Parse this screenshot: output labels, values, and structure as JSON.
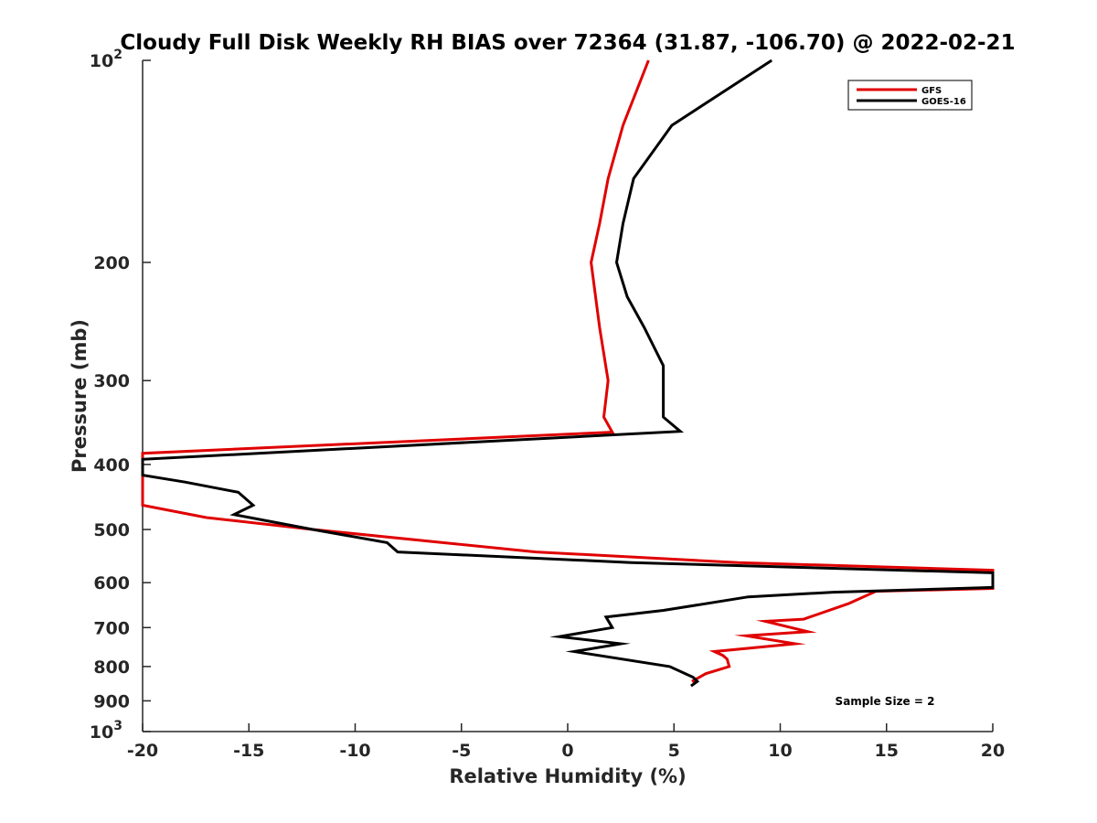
{
  "chart_data": {
    "type": "line",
    "title": "Cloudy Full Disk Weekly RH BIAS over 72364 (31.87, -106.70) @ 2022-02-21",
    "xlabel": "Relative Humidity (%)",
    "ylabel": "Pressure (mb)",
    "xlim": [
      -20,
      20
    ],
    "ylim": [
      100,
      1000
    ],
    "yscale": "log",
    "y_reversed": true,
    "xticks": [
      "-20",
      "-15",
      "-10",
      "-5",
      "0",
      "5",
      "10",
      "15",
      "20"
    ],
    "xtick_values": [
      -20,
      -15,
      -10,
      -5,
      0,
      5,
      10,
      15,
      20
    ],
    "yticks": [
      {
        "value": 100,
        "base": "10",
        "exp": "2"
      },
      {
        "value": 200,
        "label": "200"
      },
      {
        "value": 300,
        "label": "300"
      },
      {
        "value": 400,
        "label": "400"
      },
      {
        "value": 500,
        "label": "500"
      },
      {
        "value": 600,
        "label": "600"
      },
      {
        "value": 700,
        "label": "700"
      },
      {
        "value": 800,
        "label": "800"
      },
      {
        "value": 900,
        "label": "900"
      },
      {
        "value": 1000,
        "base": "10",
        "exp": "3"
      }
    ],
    "grid": false,
    "legend_position": "top-right",
    "annotation": "Sample Size = 2",
    "series": [
      {
        "name": "GFS",
        "color": "#e00000",
        "points": [
          [
            3.8,
            100
          ],
          [
            2.6,
            125
          ],
          [
            1.9,
            150
          ],
          [
            1.5,
            175
          ],
          [
            1.1,
            200
          ],
          [
            1.5,
            250
          ],
          [
            1.9,
            300
          ],
          [
            1.7,
            340
          ],
          [
            2.1,
            358
          ],
          [
            -20.0,
            385
          ],
          [
            -20.0,
            460
          ],
          [
            -17.0,
            480
          ],
          [
            -12.0,
            500
          ],
          [
            -1.5,
            540
          ],
          [
            8.0,
            560
          ],
          [
            20.0,
            575
          ],
          [
            20.0,
            612
          ],
          [
            14.5,
            618
          ],
          [
            13.2,
            645
          ],
          [
            11.1,
            680
          ],
          [
            9.3,
            685
          ],
          [
            11.3,
            710
          ],
          [
            8.4,
            720
          ],
          [
            10.7,
            740
          ],
          [
            6.9,
            760
          ],
          [
            7.3,
            770
          ],
          [
            7.5,
            780
          ],
          [
            7.6,
            800
          ],
          [
            6.5,
            820
          ],
          [
            5.9,
            840
          ],
          [
            6.0,
            850
          ]
        ]
      },
      {
        "name": "GOES-16",
        "color": "#000000",
        "points": [
          [
            9.6,
            100
          ],
          [
            4.9,
            125
          ],
          [
            3.1,
            150
          ],
          [
            2.6,
            175
          ],
          [
            2.3,
            200
          ],
          [
            2.8,
            225
          ],
          [
            3.6,
            250
          ],
          [
            4.5,
            285
          ],
          [
            4.5,
            310
          ],
          [
            4.5,
            340
          ],
          [
            5.3,
            357
          ],
          [
            -20.0,
            393
          ],
          [
            -20.0,
            415
          ],
          [
            -18.0,
            425
          ],
          [
            -15.5,
            440
          ],
          [
            -14.8,
            460
          ],
          [
            -15.7,
            475
          ],
          [
            -12.0,
            500
          ],
          [
            -8.5,
            523
          ],
          [
            -8.0,
            540
          ],
          [
            3.0,
            560
          ],
          [
            20.0,
            580
          ],
          [
            20.0,
            610
          ],
          [
            12.5,
            620
          ],
          [
            8.5,
            630
          ],
          [
            4.5,
            660
          ],
          [
            1.8,
            675
          ],
          [
            2.1,
            700
          ],
          [
            -0.4,
            722
          ],
          [
            2.5,
            740
          ],
          [
            0.3,
            760
          ],
          [
            4.8,
            800
          ],
          [
            5.9,
            830
          ],
          [
            6.1,
            842
          ],
          [
            5.8,
            855
          ]
        ]
      }
    ]
  }
}
